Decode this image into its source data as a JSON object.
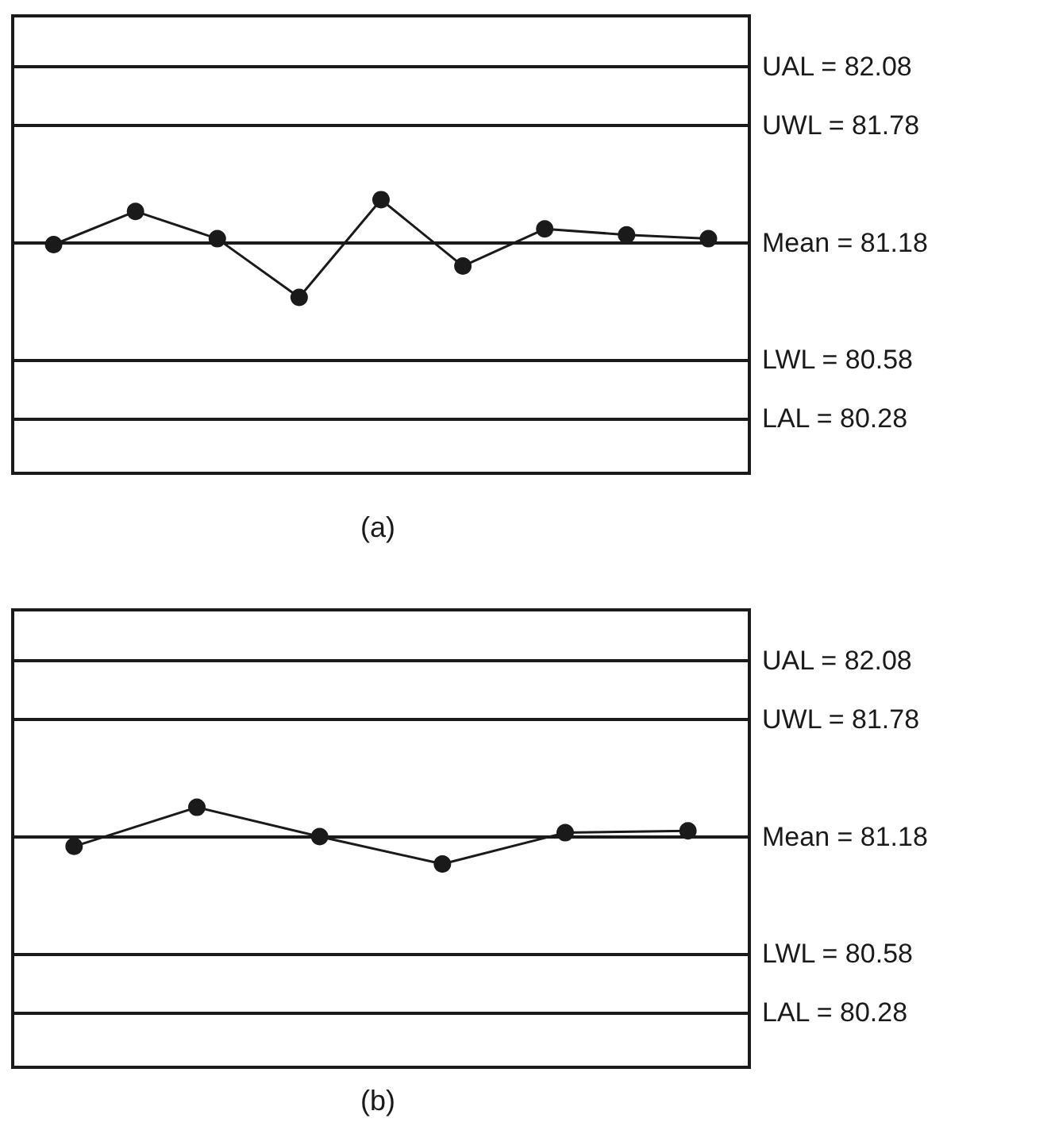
{
  "chart_data": [
    {
      "type": "line",
      "title": "(a)",
      "categories": [
        null,
        null,
        null,
        null,
        null,
        null,
        null,
        null,
        null
      ],
      "series": [
        {
          "color": "#1a1a1a",
          "values": [
            81.17,
            81.34,
            81.2,
            80.9,
            81.4,
            81.06,
            81.25,
            81.22,
            81.2
          ]
        }
      ],
      "ylim": [
        80.0,
        82.34
      ],
      "tick_labels": false,
      "grid": false,
      "marker": "circle",
      "line_style": "solid",
      "ref_lines": [
        {
          "axis": "y",
          "value": 82.08,
          "label": "UAL = 82.08",
          "color": "#1a1a1a"
        },
        {
          "axis": "y",
          "value": 81.78,
          "label": "UWL = 81.78",
          "color": "#1a1a1a"
        },
        {
          "axis": "y",
          "value": 81.18,
          "label": "Mean = 81.18",
          "color": "#1a1a1a"
        },
        {
          "axis": "y",
          "value": 80.58,
          "label": "LWL = 80.58",
          "color": "#1a1a1a"
        },
        {
          "axis": "y",
          "value": 80.28,
          "label": "LAL = 80.28",
          "color": "#1a1a1a"
        }
      ]
    },
    {
      "type": "line",
      "title": "(b)",
      "categories": [
        null,
        null,
        null,
        null,
        null,
        null
      ],
      "series": [
        {
          "color": "#1a1a1a",
          "values": [
            81.13,
            81.33,
            81.18,
            81.04,
            81.2,
            81.21
          ]
        }
      ],
      "ylim": [
        80.0,
        82.34
      ],
      "tick_labels": false,
      "grid": false,
      "marker": "circle",
      "line_style": "solid",
      "ref_lines": [
        {
          "axis": "y",
          "value": 82.08,
          "label": "UAL = 82.08",
          "color": "#1a1a1a"
        },
        {
          "axis": "y",
          "value": 81.78,
          "label": "UWL = 81.78",
          "color": "#1a1a1a"
        },
        {
          "axis": "y",
          "value": 81.18,
          "label": "Mean = 81.18",
          "color": "#1a1a1a"
        },
        {
          "axis": "y",
          "value": 80.58,
          "label": "LWL = 80.58",
          "color": "#1a1a1a"
        },
        {
          "axis": "y",
          "value": 80.28,
          "label": "LAL = 80.28",
          "color": "#1a1a1a"
        }
      ]
    }
  ]
}
